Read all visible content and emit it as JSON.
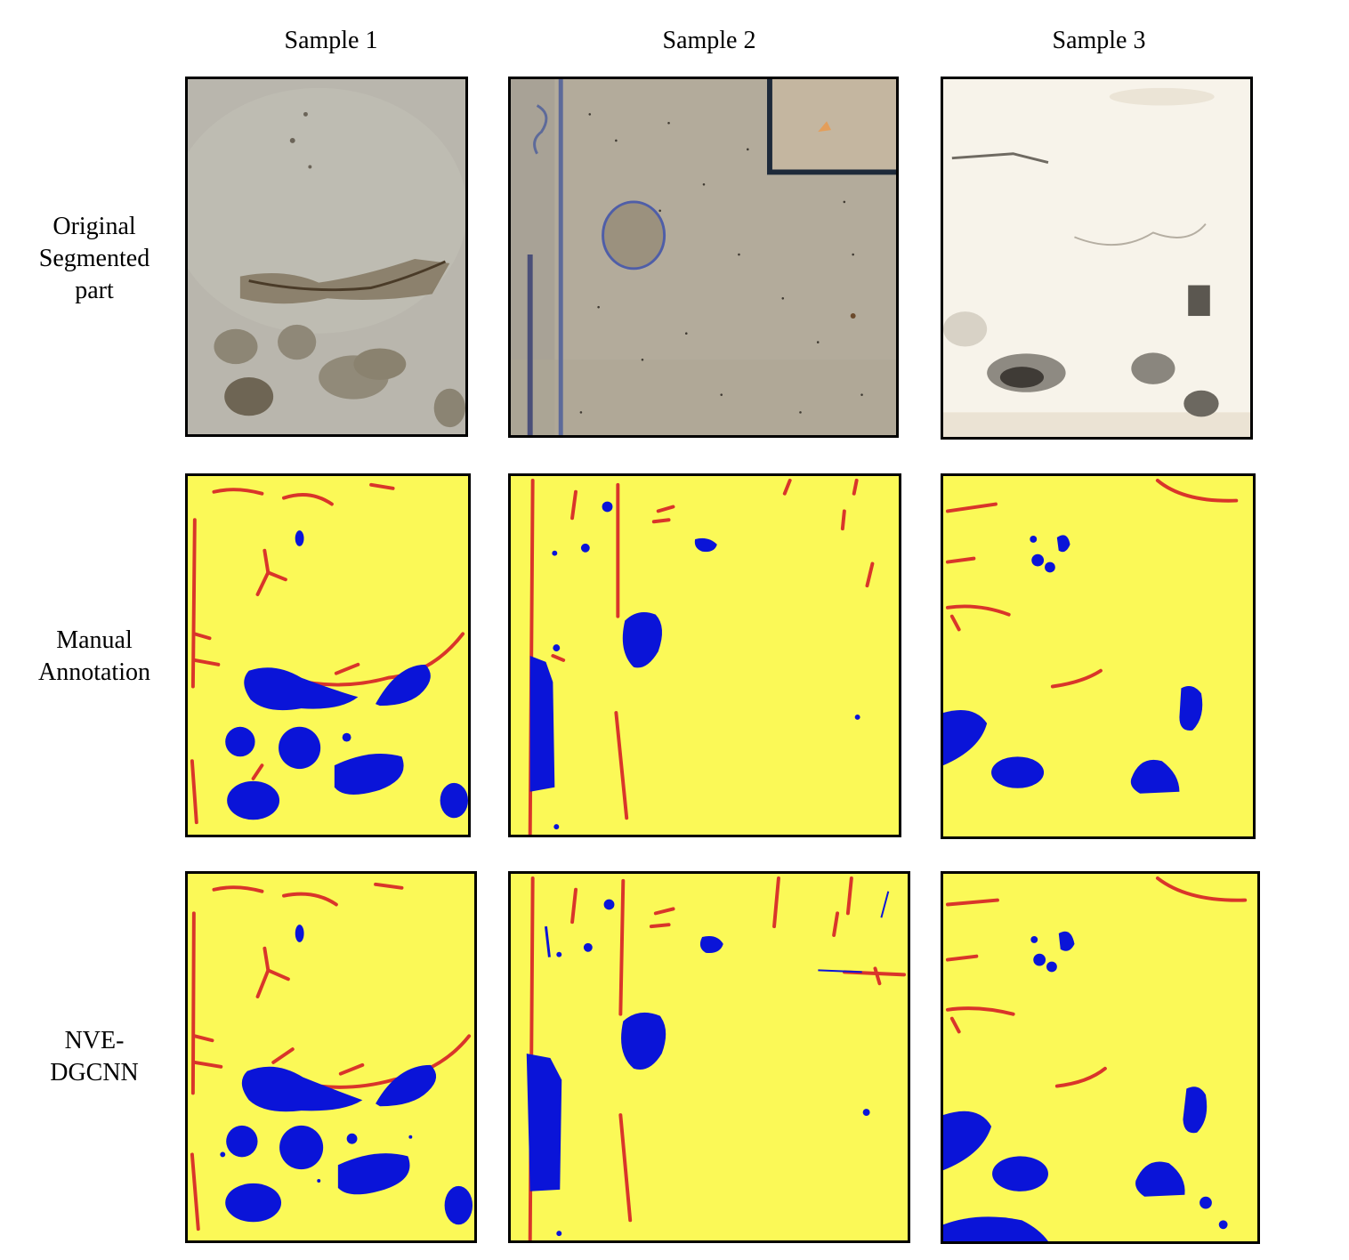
{
  "figure": {
    "columns": [
      "Sample 1",
      "Sample 2",
      "Sample 3"
    ],
    "rows": [
      {
        "lines": [
          "Original",
          "Segmented",
          "part"
        ]
      },
      {
        "lines": [
          "Manual",
          "Annotation"
        ]
      },
      {
        "lines": [
          "NVE-",
          "DGCNN"
        ]
      }
    ]
  },
  "colors": {
    "background_class": "#fbf957",
    "crack_class": "#d9352a",
    "spall_class": "#0a14d8"
  }
}
